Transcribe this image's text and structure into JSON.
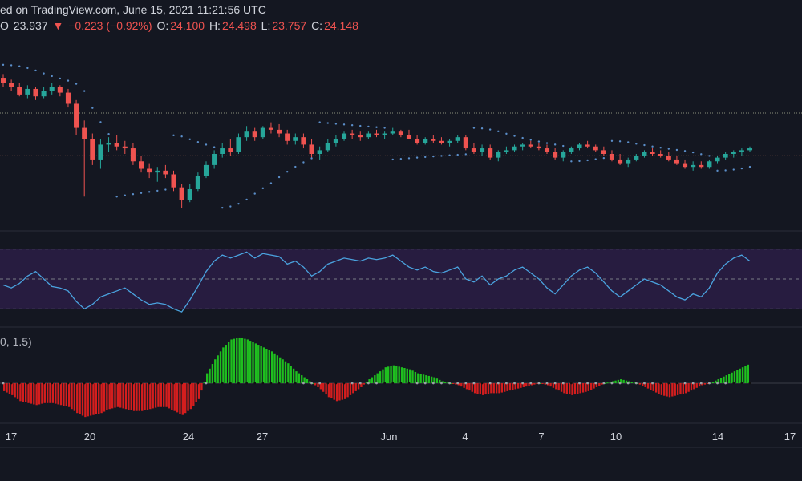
{
  "header": {
    "published": "ed on TradingView.com, June 15, 2021 11:21:56 UTC",
    "last_price": "23.937",
    "change_arrow": "▼",
    "change": "−0.223 (−0.92%)",
    "o_label": "O:",
    "o_value": "24.100",
    "h_label": "H:",
    "h_value": "24.498",
    "l_label": "L:",
    "l_value": "23.757",
    "c_label": "C:",
    "c_value": "24.148",
    "o_prefix": "O"
  },
  "indicator_title": "0, 1.5)",
  "colors": {
    "background": "#141721",
    "up": "#26a69a",
    "down": "#ef5350",
    "rsi_line": "#4aa3df",
    "rsi_band": "#2a1d45",
    "osc_up": "#1fbf1f",
    "osc_down": "#d41e1e",
    "sar": "#5b8ec9"
  },
  "chart_data": {
    "type": "candlestick",
    "x_ticks": [
      "17",
      "20",
      "24",
      "27",
      "Jun",
      "4",
      "7",
      "10",
      "14",
      "17"
    ],
    "ohlc": [
      [
        27.9,
        28.1,
        27.4,
        27.6
      ],
      [
        27.6,
        27.8,
        27.2,
        27.4
      ],
      [
        27.4,
        27.6,
        26.9,
        27.0
      ],
      [
        27.0,
        27.5,
        26.8,
        27.3
      ],
      [
        27.3,
        27.4,
        26.7,
        26.9
      ],
      [
        26.9,
        27.4,
        26.8,
        27.2
      ],
      [
        27.2,
        27.6,
        27.0,
        27.4
      ],
      [
        27.4,
        27.5,
        26.9,
        27.1
      ],
      [
        27.1,
        27.3,
        26.3,
        26.5
      ],
      [
        26.5,
        26.7,
        24.8,
        25.2
      ],
      [
        25.2,
        25.6,
        21.5,
        24.6
      ],
      [
        24.6,
        24.9,
        23.2,
        23.5
      ],
      [
        23.5,
        24.6,
        23.0,
        24.3
      ],
      [
        24.3,
        24.7,
        23.9,
        24.4
      ],
      [
        24.4,
        24.8,
        24.0,
        24.2
      ],
      [
        24.2,
        24.5,
        23.8,
        24.1
      ],
      [
        24.1,
        24.4,
        23.2,
        23.4
      ],
      [
        23.4,
        23.7,
        22.8,
        23.0
      ],
      [
        23.0,
        23.3,
        22.5,
        22.8
      ],
      [
        22.8,
        23.1,
        22.3,
        22.9
      ],
      [
        22.9,
        23.2,
        22.5,
        22.7
      ],
      [
        22.7,
        22.9,
        21.8,
        22.0
      ],
      [
        22.0,
        22.2,
        20.9,
        21.3
      ],
      [
        21.3,
        22.2,
        21.2,
        21.9
      ],
      [
        21.9,
        22.8,
        21.8,
        22.6
      ],
      [
        22.6,
        23.4,
        22.5,
        23.2
      ],
      [
        23.2,
        24.0,
        23.0,
        23.8
      ],
      [
        23.8,
        24.4,
        23.6,
        24.1
      ],
      [
        24.1,
        24.6,
        23.7,
        23.9
      ],
      [
        23.9,
        24.9,
        23.8,
        24.7
      ],
      [
        24.7,
        25.3,
        24.5,
        25.0
      ],
      [
        25.0,
        25.2,
        24.5,
        24.7
      ],
      [
        24.7,
        25.3,
        24.6,
        25.2
      ],
      [
        25.2,
        25.5,
        24.9,
        25.1
      ],
      [
        25.1,
        25.4,
        24.7,
        24.9
      ],
      [
        24.9,
        25.1,
        24.3,
        24.5
      ],
      [
        24.5,
        24.9,
        24.3,
        24.7
      ],
      [
        24.7,
        24.9,
        24.1,
        24.3
      ],
      [
        24.3,
        24.6,
        23.6,
        23.8
      ],
      [
        23.8,
        24.2,
        23.5,
        24.0
      ],
      [
        24.0,
        24.6,
        23.9,
        24.4
      ],
      [
        24.4,
        24.8,
        24.2,
        24.6
      ],
      [
        24.6,
        25.0,
        24.5,
        24.9
      ],
      [
        24.9,
        25.1,
        24.6,
        24.8
      ],
      [
        24.8,
        25.0,
        24.5,
        24.7
      ],
      [
        24.7,
        25.0,
        24.6,
        24.9
      ],
      [
        24.9,
        25.1,
        24.7,
        24.8
      ],
      [
        24.8,
        25.0,
        24.6,
        24.9
      ],
      [
        24.9,
        25.2,
        24.8,
        25.0
      ],
      [
        25.0,
        25.1,
        24.7,
        24.8
      ],
      [
        24.8,
        25.1,
        24.6,
        24.6
      ],
      [
        24.6,
        24.8,
        24.3,
        24.4
      ],
      [
        24.4,
        24.7,
        24.3,
        24.6
      ],
      [
        24.6,
        24.8,
        24.4,
        24.5
      ],
      [
        24.5,
        24.7,
        24.3,
        24.4
      ],
      [
        24.4,
        24.6,
        24.2,
        24.5
      ],
      [
        24.5,
        24.8,
        24.4,
        24.7
      ],
      [
        24.7,
        24.8,
        24.0,
        24.1
      ],
      [
        24.1,
        24.4,
        23.8,
        23.9
      ],
      [
        23.9,
        24.3,
        23.7,
        24.1
      ],
      [
        24.1,
        24.3,
        23.5,
        23.6
      ],
      [
        23.6,
        24.0,
        23.4,
        23.9
      ],
      [
        23.9,
        24.2,
        23.8,
        24.0
      ],
      [
        24.0,
        24.3,
        23.9,
        24.2
      ],
      [
        24.2,
        24.4,
        24.0,
        24.3
      ],
      [
        24.3,
        24.5,
        24.1,
        24.2
      ],
      [
        24.2,
        24.4,
        24.0,
        24.1
      ],
      [
        24.1,
        24.3,
        23.8,
        23.9
      ],
      [
        23.9,
        24.1,
        23.5,
        23.6
      ],
      [
        23.6,
        24.0,
        23.4,
        23.9
      ],
      [
        23.9,
        24.2,
        23.8,
        24.1
      ],
      [
        24.1,
        24.4,
        24.0,
        24.3
      ],
      [
        24.3,
        24.5,
        24.1,
        24.2
      ],
      [
        24.2,
        24.3,
        23.9,
        24.0
      ],
      [
        24.0,
        24.2,
        23.7,
        23.8
      ],
      [
        23.8,
        24.0,
        23.4,
        23.5
      ],
      [
        23.5,
        23.8,
        23.2,
        23.3
      ],
      [
        23.3,
        23.6,
        23.1,
        23.5
      ],
      [
        23.5,
        23.8,
        23.4,
        23.7
      ],
      [
        23.7,
        24.0,
        23.6,
        23.9
      ],
      [
        23.9,
        24.1,
        23.7,
        23.8
      ],
      [
        23.8,
        24.0,
        23.6,
        23.7
      ],
      [
        23.7,
        23.9,
        23.4,
        23.5
      ],
      [
        23.5,
        23.7,
        23.2,
        23.3
      ],
      [
        23.3,
        23.5,
        23.0,
        23.1
      ],
      [
        23.1,
        23.4,
        22.9,
        23.2
      ],
      [
        23.2,
        23.4,
        23.0,
        23.1
      ],
      [
        23.1,
        23.5,
        23.0,
        23.4
      ],
      [
        23.4,
        23.7,
        23.3,
        23.6
      ],
      [
        23.6,
        23.9,
        23.5,
        23.8
      ],
      [
        23.8,
        24.0,
        23.6,
        23.9
      ],
      [
        23.9,
        24.1,
        23.7,
        24.0
      ],
      [
        24.0,
        24.2,
        23.9,
        24.1
      ]
    ],
    "rsi": [
      46,
      44,
      47,
      52,
      55,
      50,
      45,
      44,
      42,
      35,
      30,
      33,
      38,
      40,
      42,
      44,
      40,
      36,
      33,
      34,
      33,
      30,
      28,
      36,
      45,
      55,
      62,
      66,
      64,
      66,
      68,
      64,
      67,
      66,
      65,
      60,
      62,
      58,
      52,
      55,
      60,
      62,
      64,
      63,
      62,
      64,
      63,
      64,
      66,
      62,
      58,
      56,
      58,
      55,
      54,
      56,
      58,
      50,
      48,
      52,
      46,
      50,
      52,
      56,
      58,
      54,
      50,
      44,
      40,
      46,
      52,
      56,
      58,
      54,
      48,
      42,
      38,
      42,
      46,
      50,
      48,
      46,
      42,
      38,
      36,
      40,
      38,
      44,
      54,
      60,
      64,
      66,
      62
    ],
    "osc": [
      -0.4,
      -0.6,
      -0.9,
      -1.0,
      -1.1,
      -1.0,
      -1.0,
      -1.1,
      -1.2,
      -1.5,
      -1.7,
      -1.6,
      -1.5,
      -1.3,
      -1.2,
      -1.3,
      -1.4,
      -1.4,
      -1.3,
      -1.2,
      -1.2,
      -1.4,
      -1.6,
      -1.3,
      -0.8,
      0.5,
      1.2,
      1.8,
      2.2,
      2.3,
      2.2,
      2.0,
      1.8,
      1.6,
      1.3,
      1.0,
      0.6,
      0.3,
      0.0,
      -0.3,
      -0.7,
      -0.9,
      -0.8,
      -0.5,
      -0.2,
      0.2,
      0.5,
      0.8,
      0.9,
      0.8,
      0.7,
      0.5,
      0.4,
      0.3,
      0.1,
      0.0,
      -0.1,
      -0.3,
      -0.5,
      -0.6,
      -0.5,
      -0.5,
      -0.4,
      -0.3,
      -0.2,
      -0.1,
      0.0,
      -0.1,
      -0.3,
      -0.5,
      -0.6,
      -0.5,
      -0.4,
      -0.2,
      0.0,
      0.1,
      0.2,
      0.1,
      0.0,
      -0.2,
      -0.4,
      -0.6,
      -0.7,
      -0.6,
      -0.5,
      -0.3,
      -0.1,
      0.0,
      0.2,
      0.4,
      0.6,
      0.8,
      1.0
    ],
    "price_lines": [
      26.0,
      24.6,
      23.7
    ],
    "rsi_levels": [
      70,
      50,
      30
    ],
    "osc_ylim": [
      -2.5,
      2.5
    ],
    "price_ylim": [
      20.0,
      29.5
    ]
  }
}
